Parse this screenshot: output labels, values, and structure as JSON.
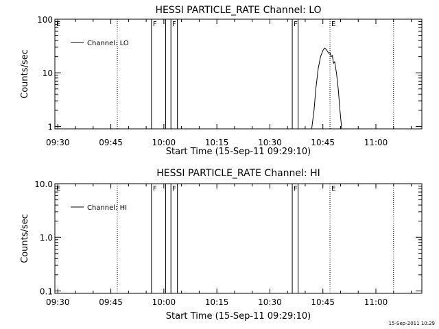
{
  "chart_data": [
    {
      "type": "line",
      "title": "HESSI PARTICLE_RATE Channel: LO",
      "xlabel": "Start Time (15-Sep-11 09:29:10)",
      "ylabel": "Counts/sec",
      "y_scale": "log",
      "ylim": [
        0.9,
        100
      ],
      "xlim": [
        "09:29:10",
        "11:13:00"
      ],
      "x_ticks": [
        "09:30",
        "09:45",
        "10:00",
        "10:15",
        "10:30",
        "10:45",
        "11:00"
      ],
      "y_ticks": [
        "1",
        "10",
        "100"
      ],
      "legend": {
        "entries": [
          "Channel: LO"
        ],
        "placement": "top-left"
      },
      "flag_lines": [
        {
          "label": "E",
          "time": "09:29:10",
          "style": "dotted",
          "show_label": true
        },
        {
          "label": "",
          "time": "09:46:50",
          "style": "dotted",
          "show_label": false
        },
        {
          "label": "F",
          "time": "09:56:30",
          "style": "solid",
          "show_label": true
        },
        {
          "label": "",
          "time": "10:00:30",
          "style": "solid",
          "show_label": false
        },
        {
          "label": "F",
          "time": "10:02:00",
          "style": "solid",
          "show_label": true
        },
        {
          "label": "",
          "time": "10:03:50",
          "style": "solid",
          "show_label": false
        },
        {
          "label": "F",
          "time": "10:36:20",
          "style": "solid",
          "show_label": true
        },
        {
          "label": "",
          "time": "10:38:00",
          "style": "solid",
          "show_label": false
        },
        {
          "label": "E",
          "time": "10:47:00",
          "style": "dotted",
          "show_label": true
        },
        {
          "label": "",
          "time": "11:05:00",
          "style": "dotted",
          "show_label": false
        }
      ],
      "series": [
        {
          "name": "Channel: LO",
          "points": [
            [
              "10:41:50",
              0.9
            ],
            [
              "10:42:30",
              2
            ],
            [
              "10:43:00",
              5
            ],
            [
              "10:43:40",
              12
            ],
            [
              "10:44:20",
              20
            ],
            [
              "10:45:00",
              26
            ],
            [
              "10:45:30",
              29
            ],
            [
              "10:46:00",
              27
            ],
            [
              "10:46:40",
              23
            ],
            [
              "10:47:00",
              24
            ],
            [
              "10:47:20",
              20
            ],
            [
              "10:47:40",
              21
            ],
            [
              "10:48:00",
              15
            ],
            [
              "10:48:20",
              16
            ],
            [
              "10:48:50",
              10
            ],
            [
              "10:49:20",
              5
            ],
            [
              "10:49:50",
              2
            ],
            [
              "10:50:20",
              0.9
            ]
          ]
        }
      ]
    },
    {
      "type": "line",
      "title": "HESSI PARTICLE_RATE Channel: HI",
      "xlabel": "Start Time (15-Sep-11 09:29:10)",
      "ylabel": "Counts/sec",
      "y_scale": "log",
      "ylim": [
        0.09,
        10
      ],
      "xlim": [
        "09:29:10",
        "11:13:00"
      ],
      "x_ticks": [
        "09:30",
        "09:45",
        "10:00",
        "10:15",
        "10:30",
        "10:45",
        "11:00"
      ],
      "y_ticks": [
        "0.1",
        "1.0",
        "10.0"
      ],
      "legend": {
        "entries": [
          "Channel: HI"
        ],
        "placement": "top-left"
      },
      "flag_lines": [
        {
          "label": "E",
          "time": "09:29:10",
          "style": "dotted",
          "show_label": true
        },
        {
          "label": "",
          "time": "09:46:50",
          "style": "dotted",
          "show_label": false
        },
        {
          "label": "F",
          "time": "09:56:30",
          "style": "solid",
          "show_label": true
        },
        {
          "label": "",
          "time": "10:00:30",
          "style": "solid",
          "show_label": false
        },
        {
          "label": "F",
          "time": "10:02:00",
          "style": "solid",
          "show_label": true
        },
        {
          "label": "",
          "time": "10:03:50",
          "style": "solid",
          "show_label": false
        },
        {
          "label": "F",
          "time": "10:36:20",
          "style": "solid",
          "show_label": true
        },
        {
          "label": "",
          "time": "10:38:00",
          "style": "solid",
          "show_label": false
        },
        {
          "label": "E",
          "time": "10:47:00",
          "style": "dotted",
          "show_label": true
        },
        {
          "label": "",
          "time": "11:05:00",
          "style": "dotted",
          "show_label": false
        }
      ],
      "series": [
        {
          "name": "Channel: HI",
          "points": []
        }
      ]
    }
  ],
  "footer": {
    "timestamp": "15-Sep-2011 10:29"
  }
}
